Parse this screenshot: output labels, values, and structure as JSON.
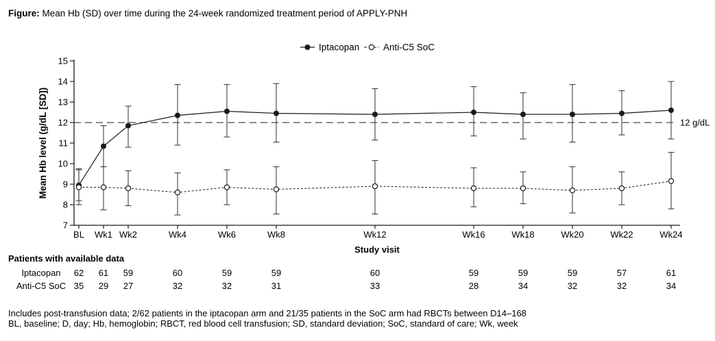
{
  "figure": {
    "title_prefix": "Figure:",
    "title": " Mean Hb (SD) over time during the 24-week randomized treatment period of APPLY-PNH"
  },
  "chart_data": {
    "type": "line",
    "title": "",
    "xlabel": "Study visit",
    "ylabel": "Mean Hb level (g/dL [SD])",
    "ylim": [
      7,
      15
    ],
    "yticks": [
      7,
      8,
      9,
      10,
      11,
      12,
      13,
      14,
      15
    ],
    "grid": false,
    "legend_position": "top-center",
    "error_bars": "SD",
    "categories": [
      "BL",
      "Wk1",
      "Wk2",
      "Wk4",
      "Wk6",
      "Wk8",
      "Wk12",
      "Wk16",
      "Wk18",
      "Wk20",
      "Wk22",
      "Wk24"
    ],
    "x_weeks": [
      0,
      1,
      2,
      4,
      6,
      8,
      12,
      16,
      18,
      20,
      22,
      24
    ],
    "reference_line": {
      "value": 12,
      "label": "12 g/dL"
    },
    "series": [
      {
        "name": "Iptacopan",
        "marker": "filled-circle",
        "line": "solid",
        "mean": [
          8.95,
          10.85,
          11.85,
          12.35,
          12.55,
          12.45,
          12.4,
          12.5,
          12.4,
          12.4,
          12.45,
          12.6
        ],
        "upper": [
          9.7,
          11.85,
          12.8,
          13.85,
          13.85,
          13.9,
          13.65,
          13.75,
          13.45,
          13.85,
          13.55,
          14.0
        ],
        "lower": [
          8.2,
          9.85,
          10.8,
          10.9,
          11.3,
          11.05,
          11.15,
          11.35,
          11.2,
          11.05,
          11.4,
          11.2
        ]
      },
      {
        "name": "Anti-C5 SoC",
        "marker": "open-circle",
        "line": "dashed",
        "mean": [
          8.85,
          8.85,
          8.8,
          8.6,
          8.85,
          8.75,
          8.9,
          8.8,
          8.8,
          8.7,
          8.8,
          9.15
        ],
        "upper": [
          9.75,
          9.85,
          9.65,
          9.55,
          9.7,
          9.85,
          10.15,
          9.8,
          9.6,
          9.85,
          9.6,
          10.55
        ],
        "lower": [
          8.0,
          7.75,
          7.95,
          7.5,
          8.0,
          7.55,
          7.55,
          7.9,
          8.05,
          7.6,
          8.0,
          7.8
        ]
      }
    ]
  },
  "patients_table": {
    "header": "Patients with available data",
    "rows": [
      {
        "label": "Iptacopan",
        "values": [
          62,
          61,
          59,
          60,
          59,
          59,
          60,
          59,
          59,
          59,
          57,
          61
        ]
      },
      {
        "label": "Anti-C5 SoC",
        "values": [
          35,
          29,
          27,
          32,
          32,
          31,
          33,
          28,
          34,
          32,
          32,
          34
        ]
      }
    ]
  },
  "footnotes": [
    "Includes post-transfusion data; 2/62 patients in the iptacopan arm and 21/35 patients in the SoC arm had RBCTs between D14–168",
    "BL, baseline; D, day; Hb, hemoglobin; RBCT, red blood cell transfusion; SD, standard deviation; SoC, standard of care; Wk, week"
  ],
  "colors": {
    "foreground": "#000000",
    "line": "#1a1a1a",
    "error_bar": "#3f3f3f",
    "background": "#ffffff"
  }
}
